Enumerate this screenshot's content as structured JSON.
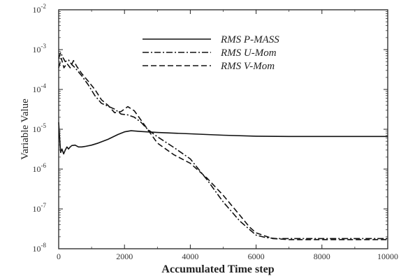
{
  "chart_data": {
    "type": "line",
    "title": "",
    "xlabel": "Accumulated Time step",
    "ylabel": "Variable Value",
    "xlim": [
      0,
      10000
    ],
    "ylim": [
      1e-08,
      0.01
    ],
    "yscale": "log",
    "grid": false,
    "legend_position": "top-right",
    "x_ticks": [
      {
        "value": 0,
        "label": "0"
      },
      {
        "value": 2000,
        "label": "2000"
      },
      {
        "value": 4000,
        "label": "4000"
      },
      {
        "value": 6000,
        "label": "6000"
      },
      {
        "value": 8000,
        "label": "8000"
      },
      {
        "value": 10000,
        "label": "10000"
      }
    ],
    "y_ticks": [
      {
        "value": 1e-08,
        "base": "10",
        "exp": "-8"
      },
      {
        "value": 1e-07,
        "base": "10",
        "exp": "-7"
      },
      {
        "value": 1e-06,
        "base": "10",
        "exp": "-6"
      },
      {
        "value": 1e-05,
        "base": "10",
        "exp": "-5"
      },
      {
        "value": 0.0001,
        "base": "10",
        "exp": "-4"
      },
      {
        "value": 0.001,
        "base": "10",
        "exp": "-3"
      },
      {
        "value": 0.01,
        "base": "10",
        "exp": "-2"
      }
    ],
    "series": [
      {
        "name": "RMS P-MASS",
        "dash": "solid",
        "x": [
          0,
          30,
          60,
          100,
          150,
          200,
          250,
          300,
          350,
          400,
          500,
          600,
          700,
          800,
          1000,
          1200,
          1500,
          1800,
          2000,
          2200,
          2500,
          3000,
          4000,
          5000,
          6000,
          7000,
          8000,
          9000,
          10000
        ],
        "y": [
          1.5e-05,
          6e-06,
          2.6e-06,
          3.2e-06,
          2.4e-06,
          3e-06,
          3.6e-06,
          3.2e-06,
          3.6e-06,
          3.9e-06,
          4e-06,
          3.6e-06,
          3.6e-06,
          3.7e-06,
          4e-06,
          4.5e-06,
          5.6e-06,
          7.4e-06,
          8.6e-06,
          9.2e-06,
          8.8e-06,
          8.3e-06,
          7.7e-06,
          7.1e-06,
          6.7e-06,
          6.6e-06,
          6.6e-06,
          6.6e-06,
          6.6e-06
        ]
      },
      {
        "name": "RMS U-Mom",
        "dash": "dashdot",
        "x": [
          0,
          60,
          120,
          200,
          300,
          400,
          500,
          700,
          900,
          1100,
          1300,
          1500,
          1700,
          1900,
          2100,
          2300,
          2500,
          2700,
          3000,
          3500,
          4000,
          4500,
          5000,
          5500,
          6000,
          6300,
          6600,
          7000,
          8000,
          9000,
          10000
        ],
        "y": [
          0.0006,
          0.00085,
          0.00065,
          0.0005,
          0.00055,
          0.00042,
          0.00035,
          0.00022,
          0.00013,
          7e-05,
          4.5e-05,
          3.8e-05,
          3.2e-05,
          2.4e-05,
          2.3e-05,
          2e-05,
          1.5e-05,
          1e-05,
          6.5e-06,
          3.5e-06,
          1.8e-06,
          5.5e-07,
          1.5e-07,
          5e-08,
          2.2e-08,
          1.9e-08,
          1.8e-08,
          1.8e-08,
          1.8e-08,
          1.8e-08,
          1.8e-08
        ]
      },
      {
        "name": "RMS V-Mom",
        "dash": "dashed",
        "x": [
          0,
          80,
          160,
          250,
          350,
          450,
          550,
          700,
          900,
          1100,
          1300,
          1500,
          1700,
          1900,
          2100,
          2300,
          2500,
          2700,
          3000,
          3500,
          4000,
          4500,
          5000,
          5500,
          5800,
          6000,
          6500,
          7000,
          8000,
          9000,
          10000
        ],
        "y": [
          0.00035,
          0.0006,
          0.00035,
          0.00045,
          0.00035,
          0.00053,
          0.00038,
          0.00025,
          0.00016,
          0.0001,
          5.5e-05,
          4e-05,
          2.6e-05,
          2.8e-05,
          3.7e-05,
          2.9e-05,
          1.7e-05,
          1e-05,
          4.5e-06,
          2.3e-06,
          1.4e-06,
          6e-07,
          2.2e-07,
          7e-08,
          3.5e-08,
          2.5e-08,
          1.8e-08,
          1.7e-08,
          1.7e-08,
          1.7e-08,
          1.7e-08
        ]
      }
    ]
  }
}
